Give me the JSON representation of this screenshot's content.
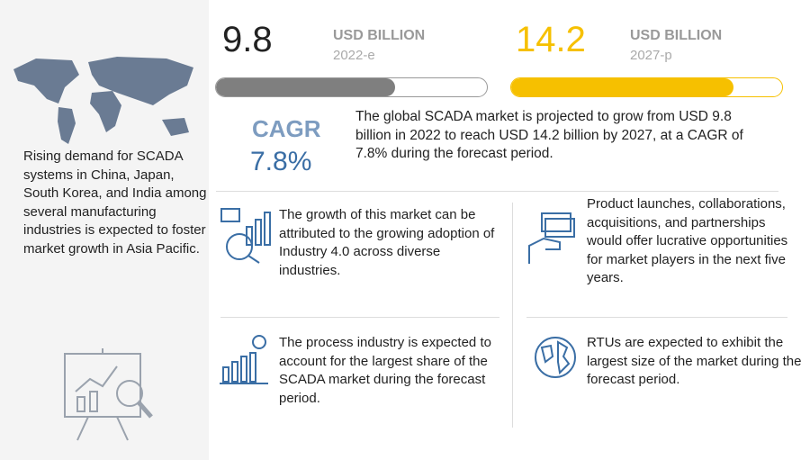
{
  "left": {
    "text": "Rising demand for SCADA systems in China, Japan, South Korea, and India among several manufacturing industries is expected to foster market growth in Asia Pacific."
  },
  "metrics": [
    {
      "value": 9.8,
      "unit": "USD BILLION",
      "period": "2022-e"
    },
    {
      "value": 14.2,
      "unit": "USD BILLION",
      "period": "2027-p"
    }
  ],
  "cagr": {
    "label": "CAGR",
    "value": "7.8%"
  },
  "summary": "The global SCADA market is projected to grow from USD 9.8 billion in 2022 to reach USD 14.2 billion by 2027, at a CAGR of 7.8% during the forecast period.",
  "insights": [
    "The growth of this market can be attributed to the growing adoption of Industry 4.0 across diverse industries.",
    "Product launches, collaborations, acquisitions, and partnerships would offer lucrative opportunities for market players in the next five years.",
    "The process industry is expected to account for the largest share of the SCADA market during the forecast period.",
    "RTUs are expected to exhibit the largest size of the market during the forecast period."
  ]
}
